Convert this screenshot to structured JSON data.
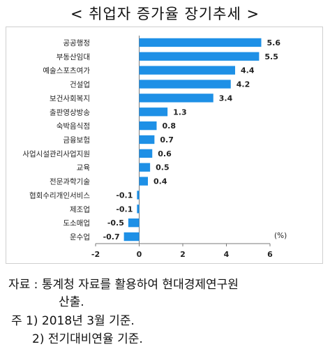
{
  "title": "< 취업자 증가율 장기추세 >",
  "chart_data": {
    "type": "bar",
    "orientation": "horizontal",
    "title": "< 취업자 증가율 장기추세 >",
    "unit": "(%)",
    "categories": [
      "공공행정",
      "부동산임대",
      "예술스포츠여가",
      "건설업",
      "보건사회복지",
      "출판영상방송",
      "숙박음식점",
      "금융보험",
      "사업시설관리사업지원",
      "교육",
      "전문과학기술",
      "협회수리개인서비스",
      "제조업",
      "도소매업",
      "운수업"
    ],
    "values": [
      5.6,
      5.5,
      4.4,
      4.2,
      3.4,
      1.3,
      0.8,
      0.7,
      0.6,
      0.5,
      0.4,
      -0.1,
      -0.1,
      -0.5,
      -0.7
    ],
    "value_labels": [
      "5.6",
      "5.5",
      "4.4",
      "4.2",
      "3.4",
      "1.3",
      "0.8",
      "0.7",
      "0.6",
      "0.5",
      "0.4",
      "-0.1",
      "-0.1",
      "-0.5",
      "-0.7"
    ],
    "xlim": [
      -2,
      6
    ],
    "xticks": [
      "-2",
      "0",
      "2",
      "4",
      "6"
    ],
    "bar_color": "#1e90e6",
    "grid": false
  },
  "notes": {
    "source": "자료 : 통계청 자료를 활용하여 현대경제연구원",
    "source_cont": "산출.",
    "note1": "주 1) 2018년 3월 기준.",
    "note2": "2) 전기대비연율 기준."
  }
}
